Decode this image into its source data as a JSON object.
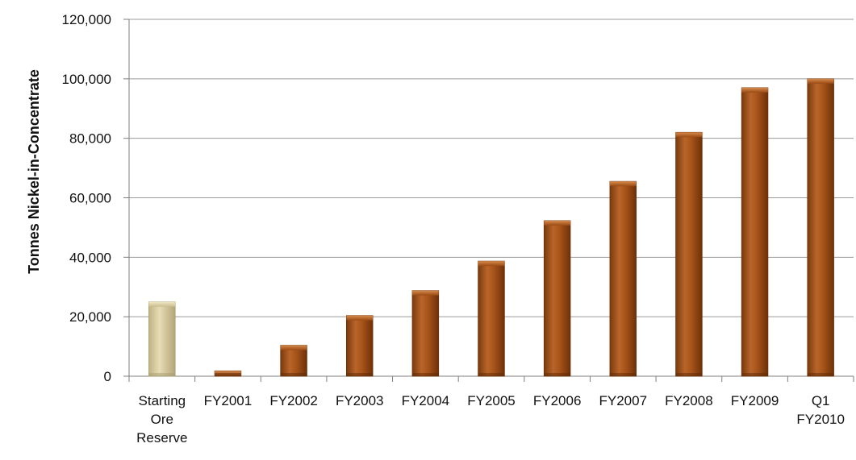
{
  "chart_data": {
    "type": "bar",
    "title": "",
    "xlabel": "",
    "ylabel": "Tonnes Nickel-in-Concentrate",
    "ylim": [
      0,
      120000
    ],
    "yticks": [
      0,
      20000,
      40000,
      60000,
      80000,
      100000,
      120000
    ],
    "ytick_labels": [
      "0",
      "20,000",
      "40,000",
      "60,000",
      "80,000",
      "100,000",
      "120,000"
    ],
    "grid": true,
    "legend": "none",
    "categories": [
      [
        "Starting",
        "Ore",
        "Reserve"
      ],
      [
        "FY2001"
      ],
      [
        "FY2002"
      ],
      [
        "FY2003"
      ],
      [
        "FY2004"
      ],
      [
        "FY2005"
      ],
      [
        "FY2006"
      ],
      [
        "FY2007"
      ],
      [
        "FY2008"
      ],
      [
        "FY2009"
      ],
      [
        "Q1",
        "FY2010"
      ]
    ],
    "values": [
      25000,
      1800,
      10400,
      20400,
      28800,
      38700,
      52300,
      65500,
      82000,
      97000,
      100000
    ],
    "colors": {
      "starting_bar": "#d9cfa4",
      "starting_bar_edge": "#a89c70",
      "bar": "#a0501a",
      "bar_light": "#c4763a",
      "bar_dark": "#6e3108",
      "grid": "#9a9a9a",
      "axis": "#7f7f7f"
    }
  }
}
